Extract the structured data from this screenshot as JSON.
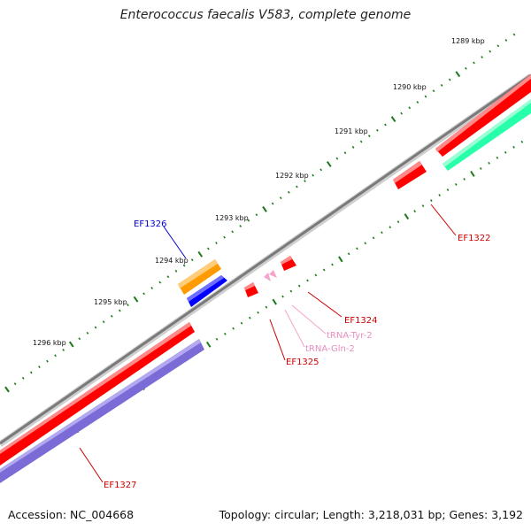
{
  "title": "Enterococcus faecalis V583, complete genome",
  "footer": {
    "accession": "Accession: NC_004668",
    "summary": "Topology: circular; Length: 3,218,031 bp; Genes: 3,192"
  },
  "colors": {
    "backbone": "#8a8a8a",
    "cds_red": "#ff0000",
    "cds_blue": "#0000ff",
    "cds_orange": "#ff9a00",
    "cds_purple": "#7b6bd6",
    "cds_green": "#28ffaa",
    "trna_pink": "#f6a3cc",
    "ticks": "#1a7a1a",
    "label_red": "#cc0000",
    "label_blue": "#0000cc",
    "label_pink": "#e58fbf"
  },
  "tick_labels": [
    "1289 kbp",
    "1290 kbp",
    "1291 kbp",
    "1292 kbp",
    "1293 kbp",
    "1294 kbp",
    "1295 kbp",
    "1296 kbp"
  ],
  "gene_labels": [
    "EF1322",
    "EF1324",
    "tRNA-Tyr-2",
    "tRNA-Gln-2",
    "EF1325",
    "EF1326",
    "EF1327"
  ]
}
